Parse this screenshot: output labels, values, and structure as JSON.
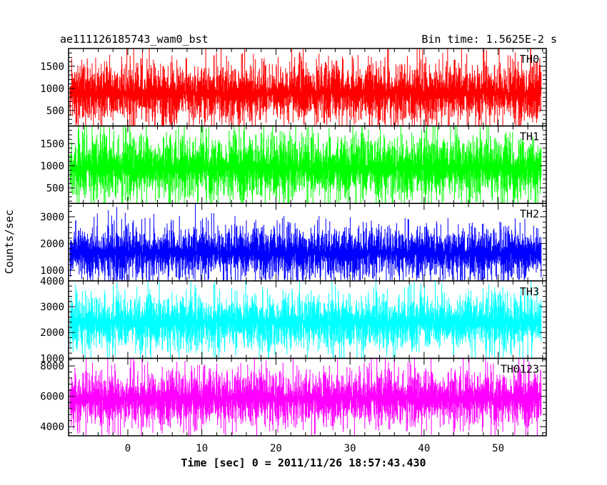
{
  "chart_data": {
    "type": "line",
    "title_left": "ae111126185743_wam0_bst",
    "title_right": "Bin time: 1.5625E-2 s",
    "xlabel": "Time [sec] 0 = 2011/11/26 18:57:43.430",
    "ylabel": "Counts/sec",
    "xlim": [
      -8,
      56.5
    ],
    "x_data_range": [
      -7.8,
      55.8
    ],
    "x_ticks": [
      0,
      10,
      20,
      30,
      40,
      50
    ],
    "x_tick_labels": [
      "0",
      "10",
      "20",
      "30",
      "40",
      "50"
    ],
    "panels": [
      {
        "name": "TH0",
        "color": "#ff0000",
        "ylim": [
          150,
          1900
        ],
        "mean": 900,
        "spread": 300,
        "y_ticks": [
          500,
          1000,
          1500
        ],
        "y_tick_labels": [
          "500",
          "1000",
          "1500"
        ]
      },
      {
        "name": "TH1",
        "color": "#00ff00",
        "ylim": [
          150,
          1900
        ],
        "mean": 950,
        "spread": 320,
        "y_ticks": [
          500,
          1000,
          1500
        ],
        "y_tick_labels": [
          "500",
          "1000",
          "1500"
        ]
      },
      {
        "name": "TH2",
        "color": "#0000ff",
        "ylim": [
          600,
          3500
        ],
        "mean": 1650,
        "spread": 430,
        "y_ticks": [
          1000,
          2000,
          3000
        ],
        "y_tick_labels": [
          "1000",
          "2000",
          "3000"
        ]
      },
      {
        "name": "TH3",
        "color": "#00ffff",
        "ylim": [
          1000,
          4000
        ],
        "mean": 2400,
        "spread": 460,
        "y_ticks": [
          1000,
          2000,
          3000,
          4000
        ],
        "y_tick_labels": [
          "1000",
          "2000",
          "3000",
          "4000"
        ]
      },
      {
        "name": "TH0123",
        "color": "#ff00ff",
        "ylim": [
          3400,
          8500
        ],
        "mean": 5850,
        "spread": 800,
        "y_ticks": [
          4000,
          6000,
          8000
        ],
        "y_tick_labels": [
          "4000",
          "6000",
          "8000"
        ]
      }
    ]
  }
}
